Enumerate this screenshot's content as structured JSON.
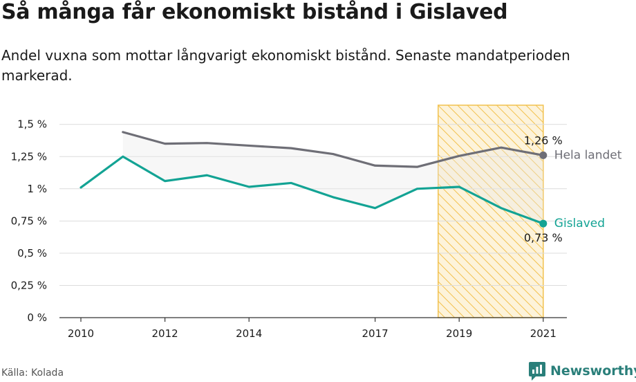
{
  "header": {
    "title": "Så många får ekonomiskt bistånd i Gislaved",
    "subtitle": "Andel vuxna som mottar långvarigt ekonomiskt bistånd. Senaste mandatperioden markerad."
  },
  "footer": {
    "source": "Källa: Kolada",
    "brand": "Newsworthy"
  },
  "icons": {
    "brand_logo": "chart-bubble-icon"
  },
  "colors": {
    "gislaved": "#13a394",
    "hela_landet": "#6e6e76",
    "highlight": "#f2c14e",
    "band": "#e9e9e9"
  },
  "chart_data": {
    "type": "line",
    "title": "Så många får ekonomiskt bistånd i Gislaved",
    "xlabel": "",
    "ylabel": "",
    "x_ticks": [
      "2010",
      "2012",
      "2014",
      "2017",
      "2019",
      "2021"
    ],
    "y_ticks": [
      "0 %",
      "0,25 %",
      "0,5 %",
      "0,75 %",
      "1 %",
      "1,25 %",
      "1,5 %"
    ],
    "xlim": [
      2010,
      2021
    ],
    "ylim": [
      0,
      1.5
    ],
    "grid": "horizontal",
    "highlight_period": [
      2018.5,
      2021
    ],
    "series": [
      {
        "name": "Hela landet",
        "end_label": "1,26 %",
        "x": [
          2011,
          2012,
          2013,
          2014,
          2015,
          2016,
          2017,
          2018,
          2019,
          2020,
          2021
        ],
        "values": [
          1.44,
          1.35,
          1.355,
          1.335,
          1.315,
          1.27,
          1.18,
          1.17,
          1.255,
          1.32,
          1.26
        ]
      },
      {
        "name": "Gislaved",
        "end_label": "0,73 %",
        "x": [
          2010,
          2011,
          2012,
          2013,
          2014,
          2015,
          2016,
          2017,
          2018,
          2019,
          2020,
          2021
        ],
        "values": [
          1.01,
          1.25,
          1.06,
          1.105,
          1.015,
          1.045,
          0.935,
          0.85,
          1.0,
          1.015,
          0.85,
          0.73
        ]
      }
    ]
  }
}
